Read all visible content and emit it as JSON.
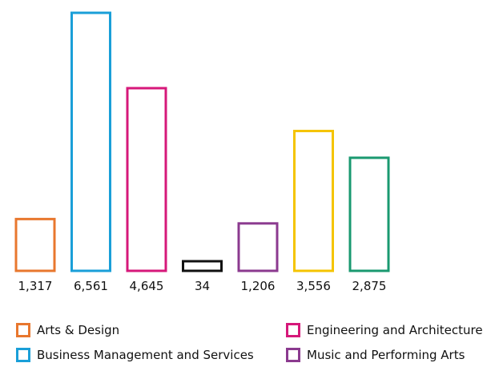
{
  "chart_data": {
    "type": "bar",
    "categories": [
      "Arts & Design",
      "Business Management and Services",
      "Engineering and Architecture",
      "",
      "Music and Performing Arts",
      "",
      ""
    ],
    "values": [
      1317,
      6561,
      4645,
      34,
      1206,
      3556,
      2875
    ],
    "value_labels": [
      "1,317",
      "6,561",
      "4,645",
      "34",
      "1,206",
      "3,556",
      "2,875"
    ],
    "colors": [
      "#E8772E",
      "#1A9FD8",
      "#D6187A",
      "#111111",
      "#8B3A8F",
      "#F5C400",
      "#1A9970"
    ],
    "bar_style": "outline",
    "ylim": [
      0,
      6561
    ],
    "grid": false,
    "legend_position": "bottom",
    "legend": [
      {
        "label": "Arts & Design",
        "color": "#E8772E"
      },
      {
        "label": "Engineering and Architecture",
        "color": "#D6187A"
      },
      {
        "label": "Business Management and Services",
        "color": "#1A9FD8"
      },
      {
        "label": "Music and Performing Arts",
        "color": "#8B3A8F"
      }
    ]
  }
}
